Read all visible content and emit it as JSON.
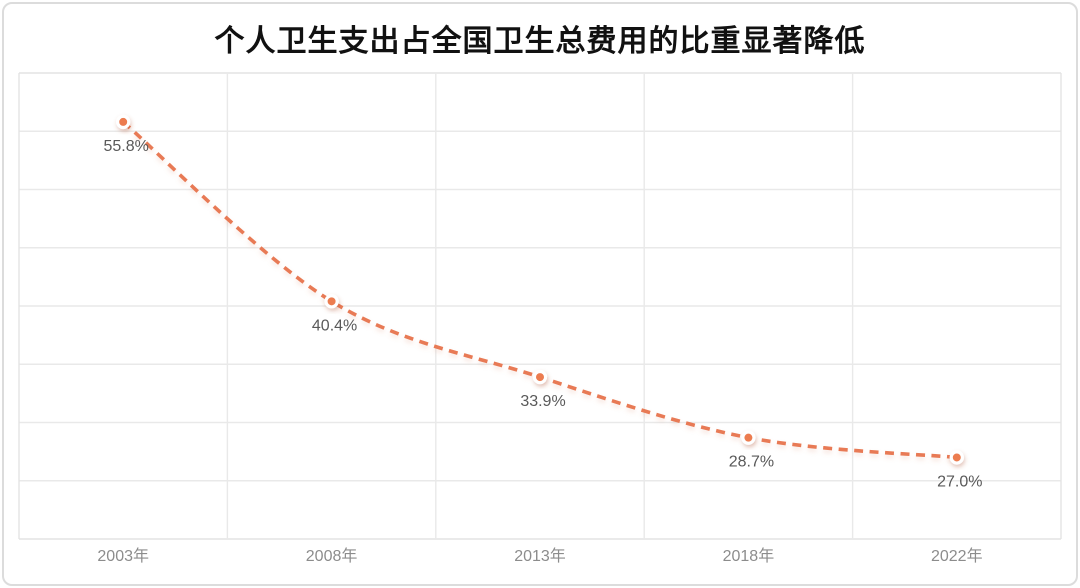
{
  "page": {
    "background": "#FFFFFF",
    "card_border_color": "#DCDCDC"
  },
  "chart_data": {
    "type": "line",
    "title": "个人卫生支出占全国卫生总费用的比重显著降低",
    "categories": [
      "2003年",
      "2008年",
      "2013年",
      "2018年",
      "2022年"
    ],
    "values": [
      55.8,
      40.4,
      33.9,
      28.7,
      27.0
    ],
    "point_labels": [
      "55.8%",
      "40.4%",
      "33.9%",
      "28.7%",
      "27.0%"
    ],
    "xlabel": "",
    "ylabel": "",
    "ylim": [
      20,
      60
    ],
    "grid_step": 5,
    "grid": true,
    "legend_position": "none",
    "line_style": "dashed",
    "smooth": true,
    "colors": {
      "line": "#E87A55",
      "marker_fill": "#EC7B50",
      "marker_ring": "#FFFFFF",
      "grid_line": "#E9E9E9",
      "plot_border": "#E3E3E3",
      "point_label": "#595959",
      "axis_label": "#8C8C8C",
      "title": "#111111"
    }
  }
}
